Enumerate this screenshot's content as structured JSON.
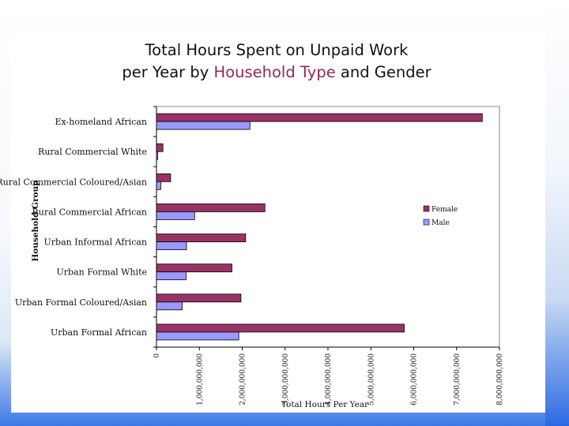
{
  "slide": {
    "title_line1": "Total Hours Spent on Unpaid Work",
    "title_line2_pre": "per Year by ",
    "title_line2_accent": "Household Type",
    "title_line2_post": " and Gender"
  },
  "chart_data": {
    "type": "bar",
    "orientation": "horizontal",
    "xlabel": "Total Hours Per Year",
    "ylabel": "Household Group",
    "xlim": [
      0,
      8000000000
    ],
    "ticks": [
      0,
      1000000000,
      2000000000,
      3000000000,
      4000000000,
      5000000000,
      6000000000,
      7000000000,
      8000000000
    ],
    "tick_labels": [
      "0",
      "1,000,000,000",
      "2,000,000,000",
      "3,000,000,000",
      "4,000,000,000",
      "5,000,000,000",
      "6,000,000,000",
      "7,000,000,000",
      "8,000,000,000"
    ],
    "categories": [
      "Ex-homeland African",
      "Rural Commercial White",
      "Rural Commercial Coloured/Asian",
      "Rural Commercial African",
      "Urban Informal African",
      "Urban Formal White",
      "Urban Formal Coloured/Asian",
      "Urban Formal African"
    ],
    "series": [
      {
        "name": "Female",
        "color": "#993366",
        "values": [
          7600000000,
          150000000,
          330000000,
          2530000000,
          2080000000,
          1760000000,
          1970000000,
          5780000000
        ]
      },
      {
        "name": "Male",
        "color": "#9999ff",
        "values": [
          2180000000,
          30000000,
          100000000,
          890000000,
          700000000,
          690000000,
          600000000,
          1920000000
        ]
      }
    ],
    "legend": "right",
    "grid": false
  }
}
